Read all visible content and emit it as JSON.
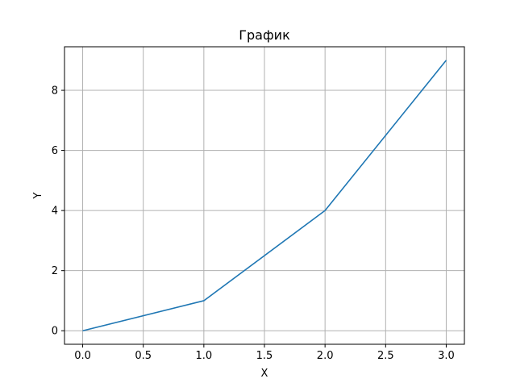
{
  "chart_data": {
    "type": "line",
    "title": "График",
    "xlabel": "X",
    "ylabel": "Y",
    "xlim": [
      -0.15,
      3.15
    ],
    "ylim": [
      -0.45,
      9.45
    ],
    "xticks": [
      0.0,
      0.5,
      1.0,
      1.5,
      2.0,
      2.5,
      3.0
    ],
    "xtick_labels": [
      "0.0",
      "0.5",
      "1.0",
      "1.5",
      "2.0",
      "2.5",
      "3.0"
    ],
    "yticks": [
      0,
      2,
      4,
      6,
      8
    ],
    "ytick_labels": [
      "0",
      "2",
      "4",
      "6",
      "8"
    ],
    "grid": true,
    "series": [
      {
        "color": "#1f77b4",
        "x": [
          0,
          1,
          2,
          3
        ],
        "y": [
          0,
          1,
          4,
          9
        ]
      }
    ]
  }
}
